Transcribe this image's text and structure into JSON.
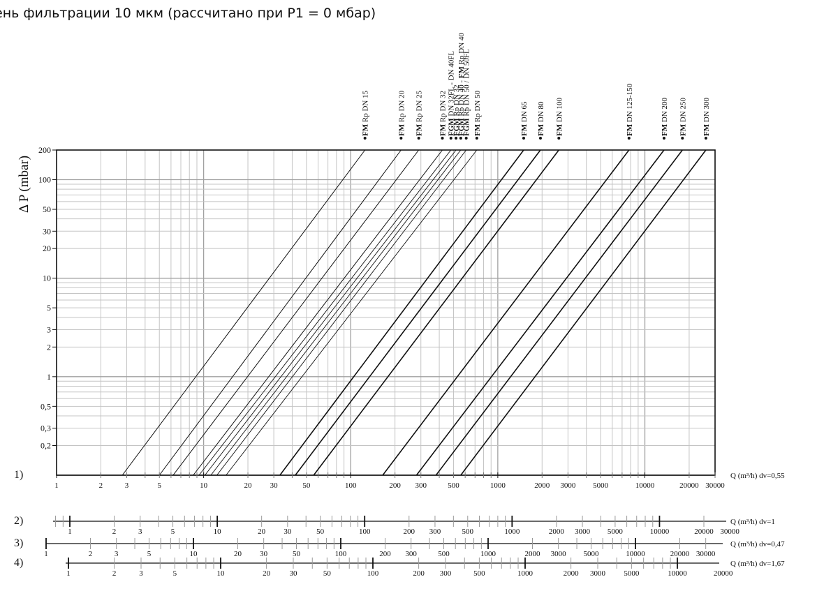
{
  "title": "ень фильтрации 10 мкм (рассчитано при P1 = 0 мбар)",
  "chart_data": {
    "type": "line",
    "x_scale": "log",
    "y_scale": "log",
    "ylabel": "Δ P (mbar)",
    "ylim": [
      0.1,
      200
    ],
    "xlim": [
      1,
      30000
    ],
    "grid": true,
    "y_tick_labels": [
      {
        "value": 200,
        "label": "200"
      },
      {
        "value": 100,
        "label": "100"
      },
      {
        "value": 50,
        "label": "50"
      },
      {
        "value": 30,
        "label": "30"
      },
      {
        "value": 20,
        "label": "20"
      },
      {
        "value": 10,
        "label": "10"
      },
      {
        "value": 5,
        "label": "5"
      },
      {
        "value": 3,
        "label": "3"
      },
      {
        "value": 2,
        "label": "2"
      },
      {
        "value": 1,
        "label": "1"
      },
      {
        "value": 0.5,
        "label": "0,5"
      },
      {
        "value": 0.3,
        "label": "0,3"
      },
      {
        "value": 0.2,
        "label": "0,2"
      }
    ],
    "series": [
      {
        "name": "FM Rp DN 15",
        "bold": "FM",
        "rest": " Rp DN 15",
        "x": [
          2.8,
          125
        ],
        "y": [
          0.1,
          200
        ],
        "weight": 1
      },
      {
        "name": "FM Rp DN 20",
        "bold": "FM",
        "rest": " Rp DN 20",
        "x": [
          5,
          220
        ],
        "y": [
          0.1,
          200
        ],
        "weight": 1
      },
      {
        "name": "FM Rp DN 25",
        "bold": "FM",
        "rest": " Rp DN 25",
        "x": [
          6.2,
          290
        ],
        "y": [
          0.1,
          200
        ],
        "weight": 1
      },
      {
        "name": "FM Rp DN 32",
        "bold": "FM",
        "rest": " Rp DN 32",
        "x": [
          8.5,
          420
        ],
        "y": [
          0.1,
          200
        ],
        "weight": 1
      },
      {
        "name": "FGM DN 32FL - DN 40FL",
        "bold": "FGM",
        "rest": " DN 32FL - DN 40FL",
        "x": [
          9.3,
          480
        ],
        "y": [
          0.1,
          200
        ],
        "weight": 0.9
      },
      {
        "name": "FGM Rp DN 32",
        "bold": "FGM",
        "rest": " Rp DN 32",
        "x": [
          10.2,
          520
        ],
        "y": [
          0.1,
          200
        ],
        "weight": 0.9
      },
      {
        "name": "FGM Rp DN 40 - FM Rp DN 40",
        "bold": "FGM",
        "rest": " Rp DN 40 - ",
        "bold2": "FM",
        "rest2": " Rp DN 40",
        "x": [
          11.2,
          560
        ],
        "y": [
          0.1,
          200
        ],
        "weight": 0.9
      },
      {
        "name": "FGM Rp DN 50 / DN 50FL",
        "bold": "FGM",
        "rest": " Rp DN 50 / DN 50FL",
        "x": [
          12.3,
          610
        ],
        "y": [
          0.1,
          200
        ],
        "weight": 0.9
      },
      {
        "name": "FM Rp DN 50",
        "bold": "FM",
        "rest": " Rp DN 50",
        "x": [
          14.2,
          720
        ],
        "y": [
          0.1,
          200
        ],
        "weight": 0.9
      },
      {
        "name": "FM DN 65",
        "bold": "FM",
        "rest": " DN 65",
        "x": [
          33,
          1500
        ],
        "y": [
          0.1,
          200
        ],
        "weight": 1.6
      },
      {
        "name": "FM DN 80",
        "bold": "FM",
        "rest": " DN 80",
        "x": [
          42,
          1950
        ],
        "y": [
          0.1,
          200
        ],
        "weight": 1.6
      },
      {
        "name": "FM DN 100",
        "bold": "FM",
        "rest": " DN 100",
        "x": [
          56,
          2600
        ],
        "y": [
          0.1,
          200
        ],
        "weight": 1.6
      },
      {
        "name": "FM DN 125-150",
        "bold": "FM",
        "rest": " DN 125-150",
        "x": [
          165,
          7800
        ],
        "y": [
          0.1,
          200
        ],
        "weight": 1.6
      },
      {
        "name": "FM DN 200",
        "bold": "FM",
        "rest": " DN 200",
        "x": [
          280,
          13500
        ],
        "y": [
          0.1,
          200
        ],
        "weight": 1.6
      },
      {
        "name": "FM DN 250",
        "bold": "FM",
        "rest": " DN 250",
        "x": [
          380,
          18000
        ],
        "y": [
          0.1,
          200
        ],
        "weight": 1.6
      },
      {
        "name": "FM DN 300",
        "bold": "FM",
        "rest": " DN 300",
        "x": [
          560,
          26000
        ],
        "y": [
          0.1,
          200
        ],
        "weight": 1.6
      }
    ],
    "x_axes": [
      {
        "label": "1)",
        "name": "Q (m³/h) dv=0,55",
        "min": 1,
        "max": 30000,
        "ticks": [
          {
            "value": 1,
            "label": "1"
          },
          {
            "value": 2,
            "label": "2"
          },
          {
            "value": 3,
            "label": "3"
          },
          {
            "value": 5,
            "label": "5"
          },
          {
            "value": 10,
            "label": "10"
          },
          {
            "value": 20,
            "label": "20"
          },
          {
            "value": 30,
            "label": "30"
          },
          {
            "value": 50,
            "label": "50"
          },
          {
            "value": 100,
            "label": "100"
          },
          {
            "value": 200,
            "label": "200"
          },
          {
            "value": 300,
            "label": "300"
          },
          {
            "value": 500,
            "label": "500"
          },
          {
            "value": 1000,
            "label": "1000"
          },
          {
            "value": 2000,
            "label": "2000"
          },
          {
            "value": 3000,
            "label": "3000"
          },
          {
            "value": 5000,
            "label": "5000"
          },
          {
            "value": 10000,
            "label": "10000"
          },
          {
            "value": 20000,
            "label": "20000"
          },
          {
            "value": 30000,
            "label": "30000"
          }
        ]
      },
      {
        "label": "2)",
        "name": "Q (m³/h) dv=1",
        "min": 0.75,
        "max": 30000,
        "ticks": [
          {
            "value": 1,
            "label": "1"
          },
          {
            "value": 2,
            "label": "2"
          },
          {
            "value": 3,
            "label": "3"
          },
          {
            "value": 5,
            "label": "5"
          },
          {
            "value": 10,
            "label": "10"
          },
          {
            "value": 20,
            "label": "20"
          },
          {
            "value": 30,
            "label": "30"
          },
          {
            "value": 50,
            "label": "50"
          },
          {
            "value": 100,
            "label": "100"
          },
          {
            "value": 200,
            "label": "200"
          },
          {
            "value": 300,
            "label": "300"
          },
          {
            "value": 500,
            "label": "500"
          },
          {
            "value": 1000,
            "label": "1000"
          },
          {
            "value": 2000,
            "label": "2000"
          },
          {
            "value": 3000,
            "label": "3000"
          },
          {
            "value": 5000,
            "label": "5000"
          },
          {
            "value": 10000,
            "label": "10000"
          },
          {
            "value": 20000,
            "label": "20000"
          },
          {
            "value": 30000,
            "label": "30000"
          }
        ]
      },
      {
        "label": "3)",
        "name": "Q (m³/h) dv=0,47",
        "min": 1,
        "max": 40000,
        "ticks": [
          {
            "value": 1,
            "label": "1"
          },
          {
            "value": 2,
            "label": "2"
          },
          {
            "value": 3,
            "label": "3"
          },
          {
            "value": 5,
            "label": "5"
          },
          {
            "value": 10,
            "label": "10"
          },
          {
            "value": 20,
            "label": "20"
          },
          {
            "value": 30,
            "label": "30"
          },
          {
            "value": 50,
            "label": "50"
          },
          {
            "value": 100,
            "label": "100"
          },
          {
            "value": 200,
            "label": "200"
          },
          {
            "value": 300,
            "label": "300"
          },
          {
            "value": 500,
            "label": "500"
          },
          {
            "value": 1000,
            "label": "1000"
          },
          {
            "value": 2000,
            "label": "2000"
          },
          {
            "value": 3000,
            "label": "3000"
          },
          {
            "value": 5000,
            "label": "5000"
          },
          {
            "value": 10000,
            "label": "10000"
          },
          {
            "value": 20000,
            "label": "20000"
          },
          {
            "value": 30000,
            "label": "30000"
          }
        ]
      },
      {
        "label": "4)",
        "name": "Q (m³/h) dv=1,67",
        "min": 0.7,
        "max": 20000,
        "ticks": [
          {
            "value": 1,
            "label": "1"
          },
          {
            "value": 2,
            "label": "2"
          },
          {
            "value": 3,
            "label": "3"
          },
          {
            "value": 5,
            "label": "5"
          },
          {
            "value": 10,
            "label": "10"
          },
          {
            "value": 20,
            "label": "20"
          },
          {
            "value": 30,
            "label": "30"
          },
          {
            "value": 50,
            "label": "50"
          },
          {
            "value": 100,
            "label": "100"
          },
          {
            "value": 200,
            "label": "200"
          },
          {
            "value": 300,
            "label": "300"
          },
          {
            "value": 500,
            "label": "500"
          },
          {
            "value": 1000,
            "label": "1000"
          },
          {
            "value": 2000,
            "label": "2000"
          },
          {
            "value": 3000,
            "label": "3000"
          },
          {
            "value": 5000,
            "label": "5000"
          },
          {
            "value": 10000,
            "label": "10000"
          },
          {
            "value": 20000,
            "label": "20000"
          }
        ]
      }
    ]
  }
}
